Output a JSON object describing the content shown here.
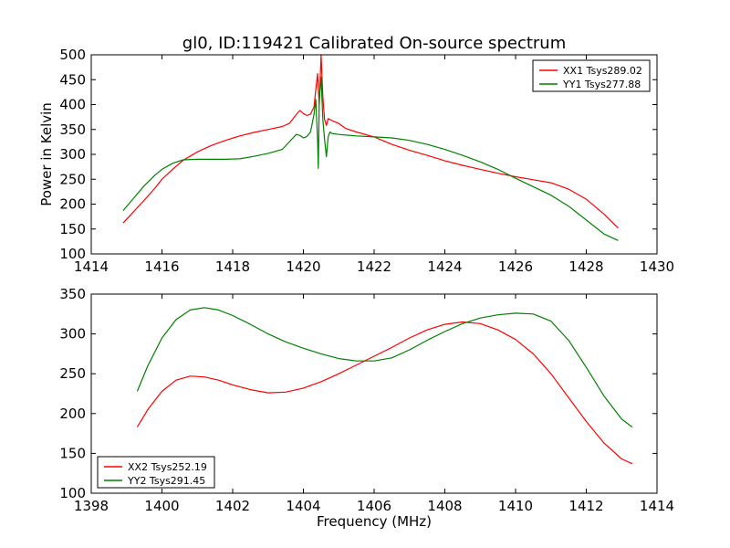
{
  "chart_data": [
    {
      "type": "line",
      "title": "gl0, ID:119421 Calibrated On-source spectrum",
      "xlabel": "",
      "ylabel": "Power in Kelvin",
      "xlim": [
        1414,
        1430
      ],
      "ylim": [
        100,
        500
      ],
      "xticks": [
        1414,
        1416,
        1418,
        1420,
        1422,
        1424,
        1426,
        1428,
        1430
      ],
      "yticks": [
        100,
        150,
        200,
        250,
        300,
        350,
        400,
        450,
        500
      ],
      "grid": false,
      "legend": "top-right",
      "series": [
        {
          "name": "XX1 Tsys289.02",
          "color": "#ff0000",
          "x": [
            1414.9,
            1415.2,
            1415.5,
            1415.8,
            1416.0,
            1416.3,
            1416.6,
            1417.0,
            1417.4,
            1417.8,
            1418.2,
            1418.6,
            1419.0,
            1419.4,
            1419.6,
            1419.8,
            1419.9,
            1420.0,
            1420.1,
            1420.2,
            1420.3,
            1420.35,
            1420.4,
            1420.45,
            1420.5,
            1420.55,
            1420.6,
            1420.65,
            1420.7,
            1420.8,
            1421.0,
            1421.2,
            1421.5,
            1422.0,
            1422.5,
            1423.0,
            1423.5,
            1424.0,
            1424.5,
            1425.0,
            1425.5,
            1426.0,
            1426.5,
            1427.0,
            1427.5,
            1428.0,
            1428.5,
            1428.9
          ],
          "y": [
            162,
            185,
            208,
            232,
            250,
            270,
            288,
            305,
            318,
            328,
            337,
            344,
            350,
            356,
            362,
            380,
            388,
            382,
            378,
            381,
            395,
            430,
            462,
            400,
            500,
            415,
            370,
            358,
            372,
            368,
            362,
            352,
            345,
            335,
            320,
            308,
            298,
            287,
            278,
            270,
            262,
            255,
            249,
            243,
            230,
            210,
            180,
            152
          ]
        },
        {
          "name": "YY1 Tsys277.88",
          "color": "#008000",
          "x": [
            1414.9,
            1415.2,
            1415.5,
            1415.8,
            1416.0,
            1416.3,
            1416.6,
            1417.0,
            1417.4,
            1417.8,
            1418.2,
            1418.6,
            1419.0,
            1419.4,
            1419.6,
            1419.8,
            1419.9,
            1420.0,
            1420.1,
            1420.2,
            1420.3,
            1420.35,
            1420.4,
            1420.42,
            1420.45,
            1420.5,
            1420.55,
            1420.6,
            1420.65,
            1420.7,
            1420.75,
            1420.8,
            1421.0,
            1421.5,
            1422.0,
            1422.5,
            1423.0,
            1423.5,
            1424.0,
            1424.5,
            1425.0,
            1425.5,
            1426.0,
            1426.5,
            1427.0,
            1427.5,
            1428.0,
            1428.5,
            1428.9
          ],
          "y": [
            187,
            212,
            237,
            258,
            270,
            282,
            289,
            290,
            290,
            290,
            291,
            296,
            302,
            310,
            325,
            340,
            338,
            333,
            336,
            345,
            380,
            410,
            330,
            272,
            410,
            455,
            370,
            330,
            295,
            335,
            345,
            342,
            340,
            337,
            335,
            333,
            328,
            320,
            310,
            298,
            285,
            270,
            252,
            235,
            218,
            196,
            168,
            140,
            127
          ]
        }
      ]
    },
    {
      "type": "line",
      "title": "",
      "xlabel": "Frequency (MHz)",
      "ylabel": "",
      "xlim": [
        1398,
        1414
      ],
      "ylim": [
        100,
        350
      ],
      "xticks": [
        1398,
        1400,
        1402,
        1404,
        1406,
        1408,
        1410,
        1412,
        1414
      ],
      "yticks": [
        100,
        150,
        200,
        250,
        300,
        350
      ],
      "grid": false,
      "legend": "bottom-left",
      "series": [
        {
          "name": "XX2 Tsys252.19",
          "color": "#ff0000",
          "x": [
            1399.3,
            1399.6,
            1400.0,
            1400.4,
            1400.8,
            1401.2,
            1401.6,
            1402.0,
            1402.5,
            1403.0,
            1403.5,
            1404.0,
            1404.5,
            1405.0,
            1405.5,
            1406.0,
            1406.5,
            1407.0,
            1407.5,
            1408.0,
            1408.5,
            1409.0,
            1409.5,
            1410.0,
            1410.5,
            1411.0,
            1411.5,
            1412.0,
            1412.5,
            1413.0,
            1413.3
          ],
          "y": [
            183,
            205,
            228,
            242,
            247,
            246,
            242,
            236,
            230,
            226,
            227,
            232,
            240,
            250,
            261,
            272,
            283,
            295,
            305,
            312,
            315,
            313,
            305,
            293,
            275,
            250,
            220,
            190,
            163,
            143,
            137
          ]
        },
        {
          "name": "YY2 Tsys291.45",
          "color": "#008000",
          "x": [
            1399.3,
            1399.6,
            1400.0,
            1400.4,
            1400.8,
            1401.2,
            1401.6,
            1402.0,
            1402.5,
            1403.0,
            1403.5,
            1404.0,
            1404.5,
            1405.0,
            1405.5,
            1406.0,
            1406.5,
            1407.0,
            1407.5,
            1408.0,
            1408.5,
            1409.0,
            1409.5,
            1410.0,
            1410.5,
            1411.0,
            1411.5,
            1412.0,
            1412.5,
            1413.0,
            1413.3
          ],
          "y": [
            228,
            260,
            295,
            318,
            330,
            333,
            330,
            323,
            312,
            300,
            290,
            282,
            275,
            269,
            266,
            266,
            270,
            280,
            292,
            303,
            313,
            320,
            324,
            326,
            325,
            316,
            292,
            258,
            222,
            193,
            183
          ]
        }
      ]
    }
  ]
}
